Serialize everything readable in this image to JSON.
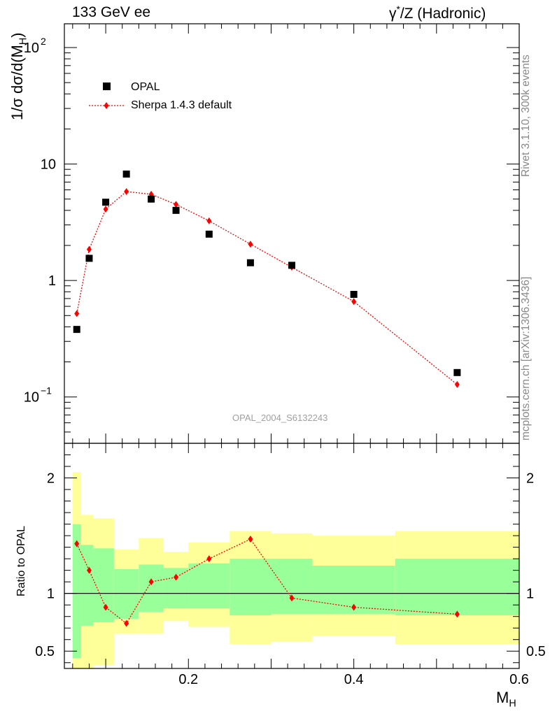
{
  "header": {
    "left": "133 GeV ee",
    "right_prefix": "γ",
    "right_sup": "*",
    "right_suffix": "/Z (Hadronic)"
  },
  "side": {
    "top": "Rivet 3.1.10,  300k events",
    "bottom": "mcplots.cern.ch [arXiv:1306.3436]"
  },
  "analysis_id": "OPAL_2004_S6132243",
  "chart_data": {
    "type": "scatter",
    "xlabel": "M",
    "xlabel_sub": "H",
    "ylabel_top": "1/σ dσ/d(M",
    "ylabel_top_sub": "H",
    "ylabel_top_end": ")",
    "ylabel_ratio": "Ratio to OPAL",
    "x_ticks": [
      "0.2",
      "0.4",
      "0.6"
    ],
    "xlim": [
      0.05,
      0.6
    ],
    "top_panel": {
      "yscale": "log",
      "ylim": [
        0.04,
        160
      ],
      "y_ticks": [
        {
          "v": 0.1,
          "base": "10",
          "exp": "−1"
        },
        {
          "v": 1,
          "base": "1",
          "exp": ""
        },
        {
          "v": 10,
          "base": "10",
          "exp": ""
        },
        {
          "v": 100,
          "base": "10",
          "exp": "2"
        }
      ]
    },
    "ratio_panel": {
      "ylim": [
        0.35,
        2.3
      ],
      "y_ticks": [
        "0.5",
        "1",
        "2"
      ],
      "y_tick_values": [
        0.5,
        1,
        2
      ]
    },
    "legend_position": "top-left",
    "series": [
      {
        "name": "OPAL",
        "color": "#000000",
        "marker": "square",
        "x": [
          0.065,
          0.08,
          0.1,
          0.125,
          0.155,
          0.185,
          0.225,
          0.275,
          0.325,
          0.4,
          0.525
        ],
        "values": [
          0.38,
          1.55,
          4.7,
          8.2,
          5.0,
          4.0,
          2.5,
          1.42,
          1.35,
          0.76,
          0.162
        ]
      },
      {
        "name": "Sherpa 1.4.3 default",
        "color": "#ff0000",
        "marker": "diamond",
        "line": "dotted",
        "x": [
          0.065,
          0.08,
          0.1,
          0.125,
          0.155,
          0.185,
          0.225,
          0.275,
          0.325,
          0.4,
          0.525
        ],
        "values": [
          0.52,
          1.85,
          4.1,
          5.8,
          5.5,
          4.5,
          3.25,
          2.05,
          1.3,
          0.66,
          0.128
        ]
      }
    ],
    "ratio_series": {
      "name": "Sherpa 1.4.3 default",
      "color": "#ff0000",
      "x": [
        0.065,
        0.08,
        0.1,
        0.125,
        0.155,
        0.185,
        0.225,
        0.275,
        0.325,
        0.4,
        0.525
      ],
      "values": [
        1.43,
        1.2,
        0.88,
        0.74,
        1.1,
        1.14,
        1.3,
        1.47,
        0.96,
        0.88,
        0.82
      ]
    },
    "uncertainty_bands": {
      "bins": [
        [
          0.06,
          0.07
        ],
        [
          0.07,
          0.085
        ],
        [
          0.085,
          0.11
        ],
        [
          0.11,
          0.14
        ],
        [
          0.14,
          0.17
        ],
        [
          0.17,
          0.2
        ],
        [
          0.2,
          0.25
        ],
        [
          0.25,
          0.3
        ],
        [
          0.3,
          0.35
        ],
        [
          0.35,
          0.45
        ],
        [
          0.45,
          0.6
        ]
      ],
      "inner": [
        [
          0.44,
          1.6
        ],
        [
          0.72,
          1.42
        ],
        [
          0.75,
          1.39
        ],
        [
          0.78,
          1.21
        ],
        [
          0.84,
          1.25
        ],
        [
          0.87,
          1.22
        ],
        [
          0.87,
          1.26
        ],
        [
          0.81,
          1.3
        ],
        [
          0.82,
          1.3
        ],
        [
          0.82,
          1.24
        ],
        [
          0.81,
          1.3
        ]
      ],
      "outer": [
        [
          0.35,
          2.05
        ],
        [
          0.35,
          1.68
        ],
        [
          0.38,
          1.65
        ],
        [
          0.65,
          1.38
        ],
        [
          0.65,
          1.48
        ],
        [
          0.76,
          1.36
        ],
        [
          0.71,
          1.44
        ],
        [
          0.56,
          1.54
        ],
        [
          0.58,
          1.52
        ],
        [
          0.63,
          1.5
        ],
        [
          0.56,
          1.54
        ]
      ],
      "inner_color": "#99ff99",
      "outer_color": "#ffff99"
    }
  }
}
